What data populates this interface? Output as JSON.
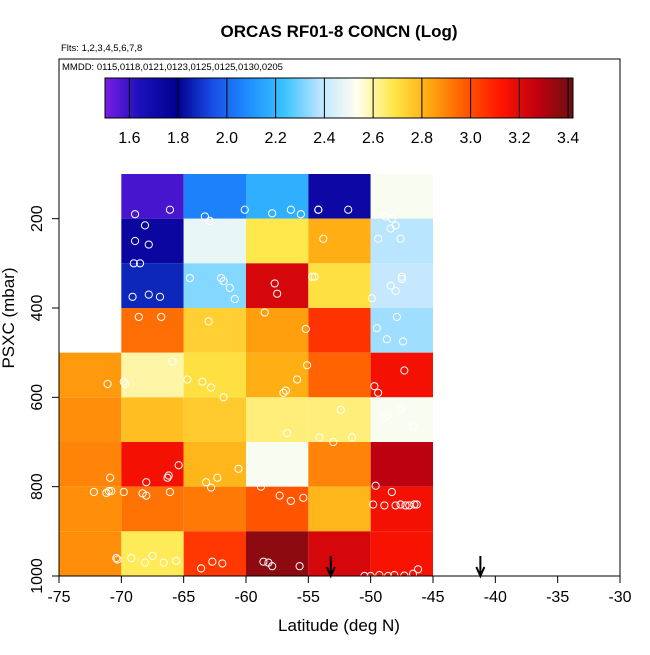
{
  "chart_data": {
    "type": "heatmap",
    "title": "ORCAS RF01-8 CONCN (Log)",
    "subtitle_flights": "Flts: 1,2,3,4,5,6,7,8",
    "subtitle_dates": "MMDD: 0115,0118,0121,0123,0125,0125,0130,0205",
    "xlabel": "Latitude (deg N)",
    "ylabel": "PSXC (mbar)",
    "xlim": [
      -75,
      -30
    ],
    "ylim": [
      1000,
      100
    ],
    "x_ticks": [
      -75,
      -70,
      -65,
      -60,
      -55,
      -50,
      -45,
      -40,
      -35,
      -30
    ],
    "x_tick_labels": [
      "-75",
      "-70",
      "-65",
      "-60",
      "-55",
      "-50",
      "-45",
      "-40",
      "-35",
      "-30"
    ],
    "y_ticks": [
      200,
      400,
      600,
      800,
      1000
    ],
    "y_tick_labels": [
      "200",
      "400",
      "600",
      "800",
      "1000"
    ],
    "colorbar": {
      "range": [
        1.5,
        3.42
      ],
      "ticks": [
        1.6,
        1.8,
        2.0,
        2.2,
        2.4,
        2.6,
        2.8,
        3.0,
        3.2,
        3.4
      ],
      "tick_labels": [
        "1.6",
        "1.8",
        "2.0",
        "2.2",
        "2.4",
        "2.6",
        "2.8",
        "3.0",
        "3.2",
        "3.4"
      ],
      "stops": [
        "#7a1ce6",
        "#1a10b8",
        "#000090",
        "#1a4ee6",
        "#1e90ff",
        "#3cc4ff",
        "#bfe6ff",
        "#fffff0",
        "#ffe84a",
        "#ffaa10",
        "#ff5a00",
        "#ff1400",
        "#c00010",
        "#6a1010"
      ]
    },
    "x_bins": [
      [
        -75,
        -70
      ],
      [
        -70,
        -65
      ],
      [
        -65,
        -60
      ],
      [
        -60,
        -55
      ],
      [
        -55,
        -50
      ],
      [
        -50,
        -45
      ]
    ],
    "y_bins": [
      [
        100,
        200
      ],
      [
        200,
        300
      ],
      [
        300,
        400
      ],
      [
        400,
        500
      ],
      [
        500,
        600
      ],
      [
        600,
        700
      ],
      [
        700,
        800
      ],
      [
        800,
        900
      ],
      [
        900,
        1000
      ]
    ],
    "values": [
      [
        null,
        1.58,
        2.06,
        2.18,
        1.72,
        2.52
      ],
      [
        null,
        1.74,
        2.48,
        2.68,
        2.82,
        2.38
      ],
      [
        null,
        1.87,
        2.32,
        3.22,
        2.7,
        2.4
      ],
      [
        null,
        2.94,
        2.74,
        2.85,
        3.06,
        2.35
      ],
      [
        2.86,
        2.6,
        2.7,
        2.82,
        2.96,
        3.15
      ],
      [
        2.88,
        2.78,
        2.75,
        2.64,
        2.64,
        2.52
      ],
      [
        2.9,
        3.15,
        2.8,
        2.52,
        2.9,
        3.28
      ],
      [
        2.88,
        2.93,
        2.92,
        2.99,
        2.8,
        3.15
      ],
      [
        2.88,
        2.67,
        3.05,
        3.36,
        3.22,
        3.14
      ]
    ],
    "flight_points": [
      [
        -68.9,
        190
      ],
      [
        -66.1,
        180
      ],
      [
        -68.1,
        215
      ],
      [
        -68.9,
        250
      ],
      [
        -67.8,
        258
      ],
      [
        -69.0,
        300
      ],
      [
        -68.5,
        300
      ],
      [
        -63.3,
        195
      ],
      [
        -62.9,
        205
      ],
      [
        -60.1,
        180
      ],
      [
        -57.9,
        188
      ],
      [
        -56.4,
        180
      ],
      [
        -55.6,
        190
      ],
      [
        -54.2,
        180
      ],
      [
        -54.2,
        180
      ],
      [
        -51.8,
        180
      ],
      [
        -48.8,
        195
      ],
      [
        -48.3,
        200
      ],
      [
        -48.0,
        215
      ],
      [
        -48.4,
        222
      ],
      [
        -53.8,
        245
      ],
      [
        -49.4,
        245
      ],
      [
        -47.6,
        245
      ],
      [
        -64.5,
        333
      ],
      [
        -62.0,
        333
      ],
      [
        -61.8,
        340
      ],
      [
        -61.3,
        355
      ],
      [
        -60.9,
        380
      ],
      [
        -57.7,
        345
      ],
      [
        -57.5,
        368
      ],
      [
        -54.7,
        330
      ],
      [
        -54.5,
        330
      ],
      [
        -47.5,
        330
      ],
      [
        -47.5,
        335
      ],
      [
        -48.4,
        350
      ],
      [
        -48.0,
        362
      ],
      [
        -49.9,
        378
      ],
      [
        -47.9,
        420
      ],
      [
        -69.1,
        375
      ],
      [
        -67.8,
        370
      ],
      [
        -66.9,
        375
      ],
      [
        -68.6,
        420
      ],
      [
        -66.8,
        420
      ],
      [
        -63.0,
        430
      ],
      [
        -58.5,
        410
      ],
      [
        -55.2,
        447
      ],
      [
        -49.5,
        445
      ],
      [
        -48.7,
        470
      ],
      [
        -47.4,
        475
      ],
      [
        -71.1,
        570
      ],
      [
        -69.8,
        565
      ],
      [
        -69.7,
        570
      ],
      [
        -65.9,
        520
      ],
      [
        -64.7,
        560
      ],
      [
        -63.5,
        565
      ],
      [
        -62.8,
        578
      ],
      [
        -61.8,
        600
      ],
      [
        -57.0,
        590
      ],
      [
        -56.8,
        585
      ],
      [
        -55.9,
        560
      ],
      [
        -55.1,
        528
      ],
      [
        -49.7,
        575
      ],
      [
        -49.4,
        590
      ],
      [
        -47.3,
        540
      ],
      [
        -47.6,
        625
      ],
      [
        -52.4,
        628
      ],
      [
        -48.6,
        640
      ],
      [
        -48.8,
        645
      ],
      [
        -54.1,
        690
      ],
      [
        -56.7,
        680
      ],
      [
        -53.0,
        700
      ],
      [
        -51.5,
        690
      ],
      [
        -46.6,
        665
      ],
      [
        -70.9,
        780
      ],
      [
        -68.0,
        790
      ],
      [
        -65.4,
        752
      ],
      [
        -66.2,
        775
      ],
      [
        -66.3,
        780
      ],
      [
        -63.2,
        790
      ],
      [
        -62.3,
        780
      ],
      [
        -60.6,
        760
      ],
      [
        -58.8,
        800
      ],
      [
        -71.0,
        810
      ],
      [
        -72.2,
        812
      ],
      [
        -71.2,
        814
      ],
      [
        -70.8,
        810
      ],
      [
        -69.8,
        812
      ],
      [
        -68.0,
        820
      ],
      [
        -68.3,
        815
      ],
      [
        -66.1,
        812
      ],
      [
        -62.8,
        802
      ],
      [
        -57.3,
        820
      ],
      [
        -56.4,
        832
      ],
      [
        -55.4,
        825
      ],
      [
        -49.6,
        798
      ],
      [
        -48.3,
        812
      ],
      [
        -49.8,
        840
      ],
      [
        -48.9,
        842
      ],
      [
        -48.0,
        842
      ],
      [
        -47.6,
        840
      ],
      [
        -47.2,
        842
      ],
      [
        -46.9,
        842
      ],
      [
        -46.5,
        840
      ],
      [
        -46.3,
        840
      ],
      [
        -70.4,
        960
      ],
      [
        -70.3,
        963
      ],
      [
        -69.2,
        960
      ],
      [
        -68.1,
        970
      ],
      [
        -67.5,
        955
      ],
      [
        -66.6,
        970
      ],
      [
        -65.6,
        966
      ],
      [
        -63.6,
        983
      ],
      [
        -62.7,
        968
      ],
      [
        -61.9,
        972
      ],
      [
        -58.6,
        968
      ],
      [
        -58.2,
        970
      ],
      [
        -55.7,
        978
      ],
      [
        -57.9,
        978
      ],
      [
        -50.5,
        1000
      ],
      [
        -50.0,
        1000
      ],
      [
        -49.3,
        998
      ],
      [
        -48.6,
        1000
      ],
      [
        -48.1,
        998
      ],
      [
        -47.3,
        999
      ],
      [
        -46.6,
        995
      ],
      [
        -46.2,
        985
      ]
    ],
    "markers": [
      {
        "lat": -53.2,
        "label": "arrow"
      },
      {
        "lat": -41.2,
        "label": "arrow"
      }
    ]
  }
}
